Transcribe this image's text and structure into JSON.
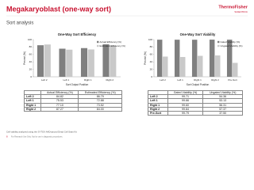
{
  "header": {
    "title": "Megakaryoblast (one-way sort)",
    "subtitle": "Sort analysis",
    "logo_line1": "ThermoFisher",
    "logo_line2": "SCIENTIFIC"
  },
  "chart_data": [
    {
      "type": "bar",
      "title": "One-Way Sort Efficiency",
      "x_label": "Sort Output Position",
      "y_label": "Percent (%)",
      "categories": [
        "Left 2",
        "Left 1",
        "Right 1",
        "Right 2"
      ],
      "series": [
        {
          "name": "Actual Efficiency (%)",
          "color": "#7f7f7f",
          "values": [
            84.82,
            75.53,
            77.1,
            87.27
          ]
        },
        {
          "name": "Estimated Efficiency (%)",
          "color": "#c9c9c9",
          "values": [
            86.79,
            72.88,
            73.52,
            84.0
          ]
        }
      ],
      "ylim": [
        0,
        100
      ],
      "yticks": [
        0,
        20,
        40,
        60,
        80,
        100
      ],
      "legend": "upper right"
    },
    {
      "type": "bar",
      "title": "One-Way Sort Viability",
      "x_label": "Sort Output Position",
      "y_label": "Percent (%)",
      "categories": [
        "Left 2",
        "Left 1",
        "Right 1",
        "Right 2",
        "Pre-Sort"
      ],
      "series": [
        {
          "name": "Gated Viability (%)",
          "color": "#7f7f7f",
          "values": [
            99.71,
            99.66,
            99.6,
            99.84,
            99.79
          ]
        },
        {
          "name": "Ungated Viability (%)",
          "color": "#c9c9c9",
          "values": [
            54.36,
            53.13,
            56.31,
            57.37,
            37.5
          ]
        }
      ],
      "ylim": [
        0,
        100
      ],
      "yticks": [
        0,
        20,
        40,
        60,
        80,
        100
      ],
      "legend": "upper right"
    }
  ],
  "tables": [
    {
      "columns": [
        "Actual Efficiency (%)",
        "Estimated Efficiency (%)"
      ],
      "rows": [
        {
          "label": "Left 2",
          "cells": [
            "84.82",
            "86.79"
          ]
        },
        {
          "label": "Left 1",
          "cells": [
            "75.53",
            "72.88"
          ]
        },
        {
          "label": "Right 1",
          "cells": [
            "77.10",
            "73.52"
          ]
        },
        {
          "label": "Right 2",
          "cells": [
            "87.27",
            "84.00"
          ]
        }
      ]
    },
    {
      "columns": [
        "Gated Viability (%)",
        "Ungated Viability (%)"
      ],
      "rows": [
        {
          "label": "Left 2",
          "cells": [
            "99.71",
            "54.36"
          ]
        },
        {
          "label": "Left 1",
          "cells": [
            "99.66",
            "53.13"
          ]
        },
        {
          "label": "Right 1",
          "cells": [
            "99.60",
            "56.31"
          ]
        },
        {
          "label": "Right 2",
          "cells": [
            "99.84",
            "57.37"
          ]
        },
        {
          "label": "Pre-Sort",
          "cells": [
            "99.79",
            "37.50"
          ]
        }
      ]
    }
  ],
  "footer": {
    "note": "Cell viability analyzed using the SYTOX AADvanced Dead Cell Stain Kit",
    "legal": "For Research Use Only. Not for use in diagnostic procedures.",
    "page": "8"
  }
}
